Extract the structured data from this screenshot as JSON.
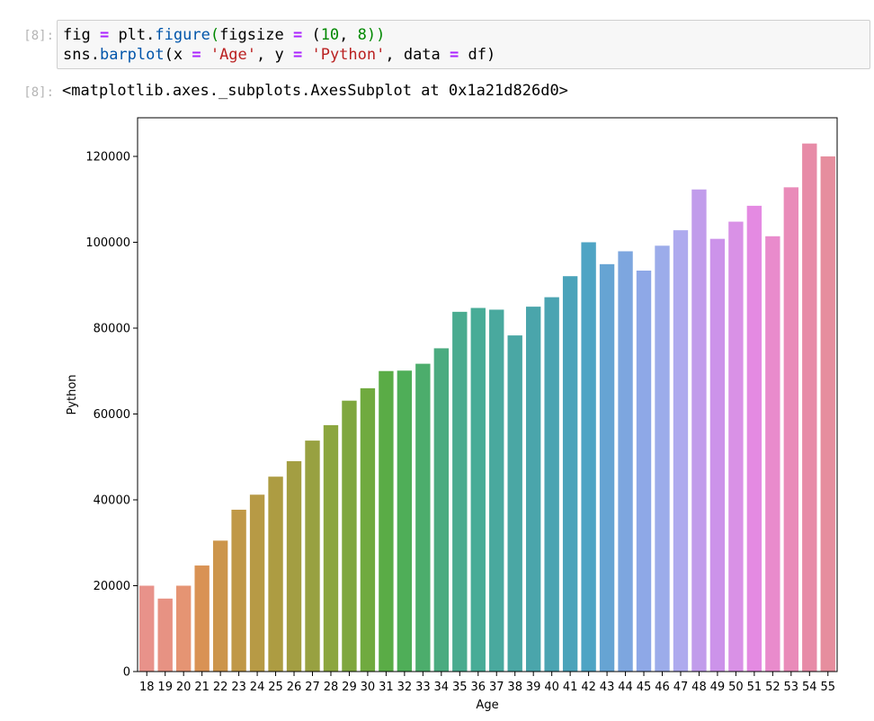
{
  "notebook": {
    "in_prompt": "[8]:",
    "out_prompt": "[8]:",
    "code_tokens_line1": [
      {
        "t": "fig ",
        "c": ""
      },
      {
        "t": "=",
        "c": "tk-op"
      },
      {
        "t": " plt.",
        "c": ""
      },
      {
        "t": "figure",
        "c": "tk-attr"
      },
      {
        "t": "(",
        "c": "tk-pg"
      },
      {
        "t": "figsize ",
        "c": ""
      },
      {
        "t": "=",
        "c": "tk-op"
      },
      {
        "t": " (",
        "c": ""
      },
      {
        "t": "10",
        "c": "tk-num"
      },
      {
        "t": ", ",
        "c": ""
      },
      {
        "t": "8",
        "c": "tk-num"
      },
      {
        "t": "))",
        "c": "tk-pg"
      }
    ],
    "code_tokens_line2": [
      {
        "t": "sns.",
        "c": ""
      },
      {
        "t": "barplot",
        "c": "tk-attr"
      },
      {
        "t": "(x ",
        "c": ""
      },
      {
        "t": "=",
        "c": "tk-op"
      },
      {
        "t": " ",
        "c": ""
      },
      {
        "t": "'Age'",
        "c": "tk-str"
      },
      {
        "t": ", y ",
        "c": ""
      },
      {
        "t": "=",
        "c": "tk-op"
      },
      {
        "t": " ",
        "c": ""
      },
      {
        "t": "'Python'",
        "c": "tk-str"
      },
      {
        "t": ", data ",
        "c": ""
      },
      {
        "t": "=",
        "c": "tk-op"
      },
      {
        "t": " df)",
        "c": ""
      }
    ],
    "output_text": "<matplotlib.axes._subplots.AxesSubplot at 0x1a21d826d0>"
  },
  "chart_data": {
    "type": "bar",
    "xlabel": "Age",
    "ylabel": "Python",
    "ylim": [
      0,
      129000
    ],
    "yticks": [
      0,
      20000,
      40000,
      60000,
      80000,
      100000,
      120000
    ],
    "categories": [
      "18",
      "19",
      "20",
      "21",
      "22",
      "23",
      "24",
      "25",
      "26",
      "27",
      "28",
      "29",
      "30",
      "31",
      "32",
      "33",
      "34",
      "35",
      "36",
      "37",
      "38",
      "39",
      "40",
      "41",
      "42",
      "43",
      "44",
      "45",
      "46",
      "47",
      "48",
      "49",
      "50",
      "51",
      "52",
      "53",
      "54",
      "55"
    ],
    "values": [
      20000,
      17000,
      20000,
      24700,
      30500,
      37700,
      41200,
      45400,
      49000,
      53800,
      57400,
      63100,
      66000,
      70000,
      70100,
      71700,
      75300,
      83800,
      84700,
      84300,
      78300,
      85000,
      87200,
      92100,
      100000,
      94900,
      97900,
      93400,
      99200,
      102800,
      112300,
      100800,
      104800,
      108500,
      101400,
      112800,
      123000,
      120000
    ],
    "colors": [
      "#e8928a",
      "#e79283",
      "#e59473",
      "#d99254",
      "#cc954b",
      "#c09847",
      "#b79a45",
      "#ad9c42",
      "#a39e42",
      "#98a141",
      "#8ca63f",
      "#7fa73f",
      "#70aa3f",
      "#5aac46",
      "#4fae58",
      "#4cad6c",
      "#4bab80",
      "#49ab8f",
      "#48ac97",
      "#49a99e",
      "#4aa7a4",
      "#4aa5ab",
      "#4ba4b2",
      "#4ba3ba",
      "#4ea4c4",
      "#66a4d3",
      "#7da6df",
      "#8ea8e7",
      "#9cacea",
      "#aeaaee",
      "#c19ceb",
      "#cc93ea",
      "#d991e6",
      "#e48ae2",
      "#e98bcc",
      "#e98bb9",
      "#e78ba7",
      "#e68e9e"
    ]
  }
}
